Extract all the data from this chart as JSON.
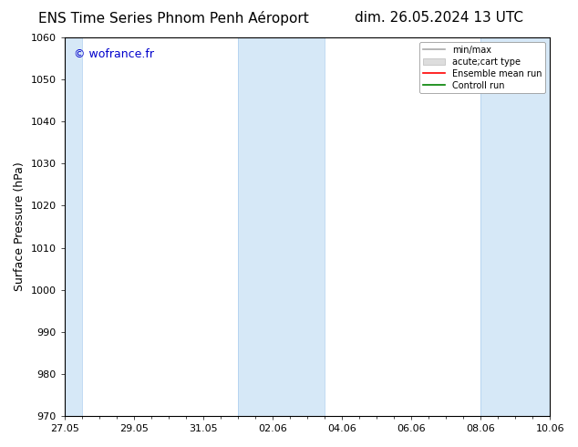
{
  "title_left": "ENS Time Series Phnom Penh Aéroport",
  "title_right": "dim. 26.05.2024 13 UTC",
  "ylabel": "Surface Pressure (hPa)",
  "ylim": [
    970,
    1060
  ],
  "yticks": [
    970,
    980,
    990,
    1000,
    1010,
    1020,
    1030,
    1040,
    1050,
    1060
  ],
  "xtick_labels": [
    "27.05",
    "29.05",
    "31.05",
    "02.06",
    "04.06",
    "06.06",
    "08.06",
    "10.06"
  ],
  "copyright_text": "© wofrance.fr",
  "copyright_color": "#0000cc",
  "background_color": "#ffffff",
  "plot_bg_color": "#ffffff",
  "shaded_color": "#d6e8f7",
  "shaded_border_color": "#aaccee",
  "legend_entries": [
    {
      "label": "min/max"
    },
    {
      "label": "acute;cart type"
    },
    {
      "label": "Ensemble mean run"
    },
    {
      "label": "Controll run"
    }
  ],
  "legend_colors": [
    "#aaaaaa",
    "#cccccc",
    "#ff0000",
    "#008000"
  ],
  "tick_fontsize": 8,
  "label_fontsize": 9,
  "title_fontsize": 11
}
